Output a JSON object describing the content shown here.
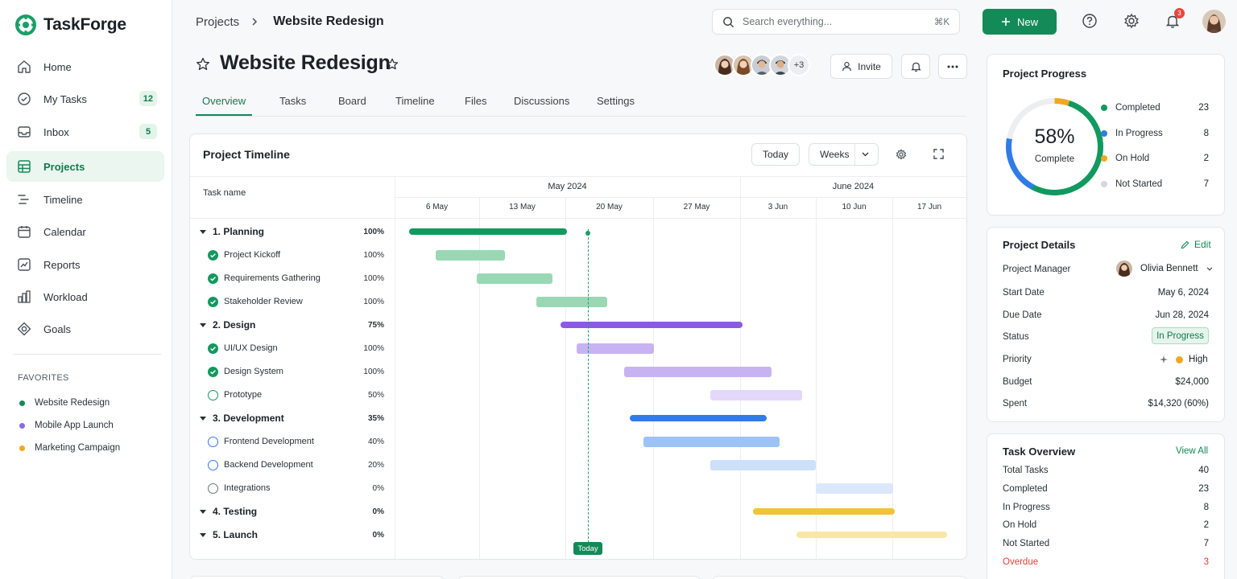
{
  "app": {
    "name": "TaskForge",
    "brand_color": "#138a57"
  },
  "sidebar": {
    "items": [
      {
        "label": "Home",
        "icon": "home-icon"
      },
      {
        "label": "My Tasks",
        "icon": "check-circle-icon",
        "badge": "12"
      },
      {
        "label": "Inbox",
        "icon": "inbox-icon",
        "badge": "5"
      },
      {
        "label": "Projects",
        "icon": "grid-icon",
        "active": true
      },
      {
        "label": "Timeline",
        "icon": "timeline-icon"
      },
      {
        "label": "Calendar",
        "icon": "calendar-icon"
      },
      {
        "label": "Reports",
        "icon": "chart-icon"
      },
      {
        "label": "Workload",
        "icon": "workload-icon"
      },
      {
        "label": "Goals",
        "icon": "target-icon"
      }
    ],
    "favorites_title": "FAVORITES",
    "favorites": [
      {
        "label": "Website Redesign",
        "color": "#138a57"
      },
      {
        "label": "Mobile App Launch",
        "color": "#8e6ae0"
      },
      {
        "label": "Marketing Campaign",
        "color": "#f0a821"
      }
    ]
  },
  "topbar": {
    "breadcrumb_root": "Projects",
    "breadcrumb_current": "Website Redesign",
    "search_placeholder": "Search everything...",
    "search_shortcut": "⌘K",
    "new_label": "New",
    "notification_count": "3"
  },
  "project": {
    "title": "Website Redesign",
    "extra_members": "+3",
    "invite_label": "Invite",
    "tabs": [
      "Overview",
      "Tasks",
      "Board",
      "Timeline",
      "Files",
      "Discussions",
      "Settings"
    ],
    "active_tab": "Overview"
  },
  "timeline": {
    "title": "Project Timeline",
    "today_btn": "Today",
    "scale": "Weeks",
    "task_col": "Task name",
    "months": [
      "May 2024",
      "June 2024"
    ],
    "weeks": [
      "6 May",
      "13 May",
      "20 May",
      "27 May",
      "3 Jun",
      "10 Jun",
      "17 Jun"
    ],
    "today_label": "Today",
    "tasks": [
      {
        "name": "1.  Planning",
        "pct": "100%",
        "group": true,
        "color": "#12995f"
      },
      {
        "name": "Project Kickoff",
        "pct": "100%",
        "status": "done",
        "color": "#9ad8b5"
      },
      {
        "name": "Requirements Gathering",
        "pct": "100%",
        "status": "done",
        "color": "#9ad8b5"
      },
      {
        "name": "Stakeholder Review",
        "pct": "100%",
        "status": "done",
        "color": "#9ad8b5"
      },
      {
        "name": "2.  Design",
        "pct": "75%",
        "group": true,
        "color": "#8a5be0"
      },
      {
        "name": "UI/UX Design",
        "pct": "100%",
        "status": "done",
        "color": "#c7b3f2"
      },
      {
        "name": "Design System",
        "pct": "100%",
        "status": "done",
        "color": "#c7b3f2"
      },
      {
        "name": "Prototype",
        "pct": "50%",
        "status": "progress",
        "color": "#e3d8f9"
      },
      {
        "name": "3.  Development",
        "pct": "35%",
        "group": true,
        "color": "#2f7ce8"
      },
      {
        "name": "Frontend Development",
        "pct": "40%",
        "status": "progress",
        "color": "#9dc3f5"
      },
      {
        "name": "Backend Development",
        "pct": "20%",
        "status": "progress",
        "color": "#cde0fa"
      },
      {
        "name": "Integrations",
        "pct": "0%",
        "status": "none",
        "color": "#dbe8fc"
      },
      {
        "name": "4.  Testing",
        "pct": "0%",
        "group": true,
        "color": "#f2c23a"
      },
      {
        "name": "5.  Launch",
        "pct": "0%",
        "group": true,
        "color": "#f9e7a6"
      }
    ]
  },
  "progress": {
    "title": "Project Progress",
    "percent_text": "58%",
    "percent_value": 58,
    "complete_label": "Complete",
    "legend": [
      {
        "label": "Completed",
        "value": "23",
        "color": "#12995f"
      },
      {
        "label": "In Progress",
        "value": "8",
        "color": "#2f7ce8"
      },
      {
        "label": "On Hold",
        "value": "2",
        "color": "#f0a821"
      },
      {
        "label": "Not Started",
        "value": "7",
        "color": "#d5d9dd"
      }
    ]
  },
  "details": {
    "title": "Project Details",
    "edit_label": "Edit",
    "rows": [
      {
        "label": "Project Manager",
        "value": "Olivia Bennett"
      },
      {
        "label": "Start Date",
        "value": "May 6, 2024"
      },
      {
        "label": "Due Date",
        "value": "Jun 28, 2024"
      },
      {
        "label": "Status",
        "value": "In Progress"
      },
      {
        "label": "Priority",
        "value": "High"
      },
      {
        "label": "Budget",
        "value": "$24,000"
      },
      {
        "label": "Spent",
        "value": "$14,320 (60%)"
      }
    ]
  },
  "overview": {
    "title": "Task Overview",
    "view_all": "View All",
    "rows": [
      {
        "label": "Total Tasks",
        "value": "40"
      },
      {
        "label": "Completed",
        "value": "23"
      },
      {
        "label": "In Progress",
        "value": "8"
      },
      {
        "label": "On Hold",
        "value": "2"
      },
      {
        "label": "Not Started",
        "value": "7"
      },
      {
        "label": "Overdue",
        "value": "3",
        "alert": true
      }
    ]
  }
}
